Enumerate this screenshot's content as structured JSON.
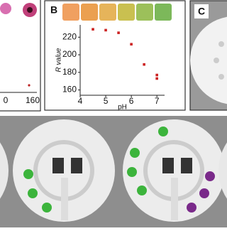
{
  "panels": {
    "b": "B",
    "c": "C"
  },
  "panel_a": {
    "xticks": [
      "0",
      "160"
    ]
  },
  "chart_data": {
    "type": "scatter",
    "xlabel": "pH",
    "ylabel": "R value",
    "x": [
      4.5,
      5,
      5.5,
      6,
      6.5,
      7,
      7
    ],
    "values": [
      229,
      228,
      225,
      212,
      189,
      177,
      173
    ],
    "color": "#cc2222",
    "xlim": [
      4,
      7.3
    ],
    "ylim": [
      154,
      234
    ],
    "xticks": [
      4,
      5,
      6,
      7
    ],
    "yticks": [
      160,
      180,
      200,
      220
    ]
  }
}
